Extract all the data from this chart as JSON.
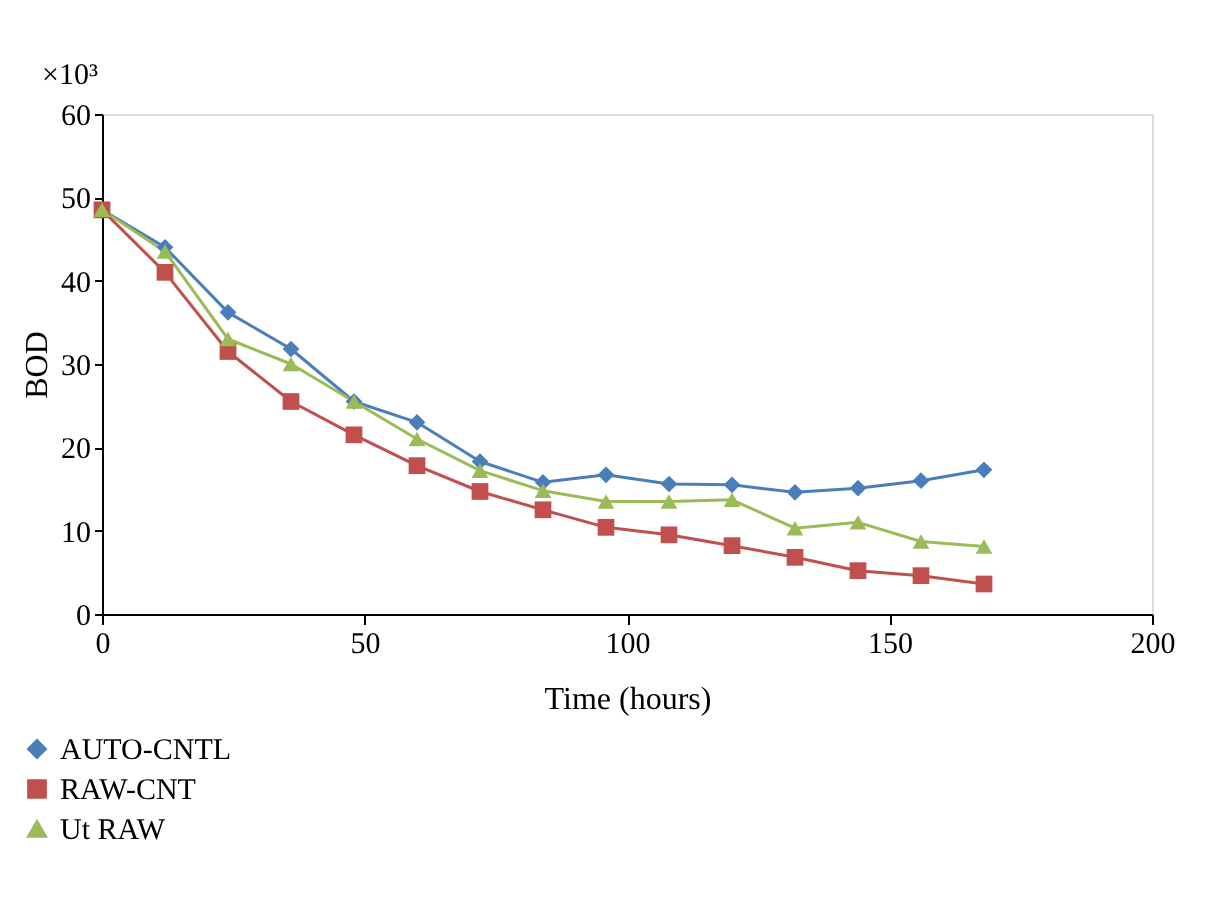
{
  "chart_data": {
    "type": "line",
    "xlabel": "Time (hours)",
    "ylabel": "BOD",
    "annotations": [
      "×10³"
    ],
    "x": [
      0,
      12,
      24,
      36,
      48,
      60,
      72,
      84,
      96,
      108,
      120,
      132,
      144,
      156,
      168
    ],
    "series": [
      {
        "name": "AUTO-CNTL",
        "color": "#4a7ebb",
        "marker": "diamond",
        "values": [
          48.5,
          44,
          36.2,
          31.8,
          25.5,
          23,
          18.3,
          15.8,
          16.7,
          15.6,
          15.5,
          14.6,
          15.1,
          16,
          17.3
        ]
      },
      {
        "name": "RAW-CNT",
        "color": "#c0504d",
        "marker": "square",
        "values": [
          48.5,
          41,
          31.5,
          25.5,
          21.5,
          17.8,
          14.7,
          12.5,
          10.4,
          9.5,
          8.2,
          6.8,
          5.2,
          4.6,
          3.6
        ]
      },
      {
        "name": "Ut RAW",
        "color": "#9bbb59",
        "marker": "triangle",
        "values": [
          48.5,
          43.5,
          33,
          30,
          25.5,
          21,
          17.2,
          14.8,
          13.5,
          13.5,
          13.7,
          10.3,
          11,
          8.7,
          8.1
        ]
      }
    ],
    "xlim": [
      0,
      200
    ],
    "xticks": [
      0,
      50,
      100,
      150,
      200
    ],
    "ylim": [
      0,
      60
    ],
    "yticks": [
      0,
      10,
      20,
      30,
      40,
      50,
      60
    ],
    "grid": false,
    "legend": "bottom left"
  }
}
